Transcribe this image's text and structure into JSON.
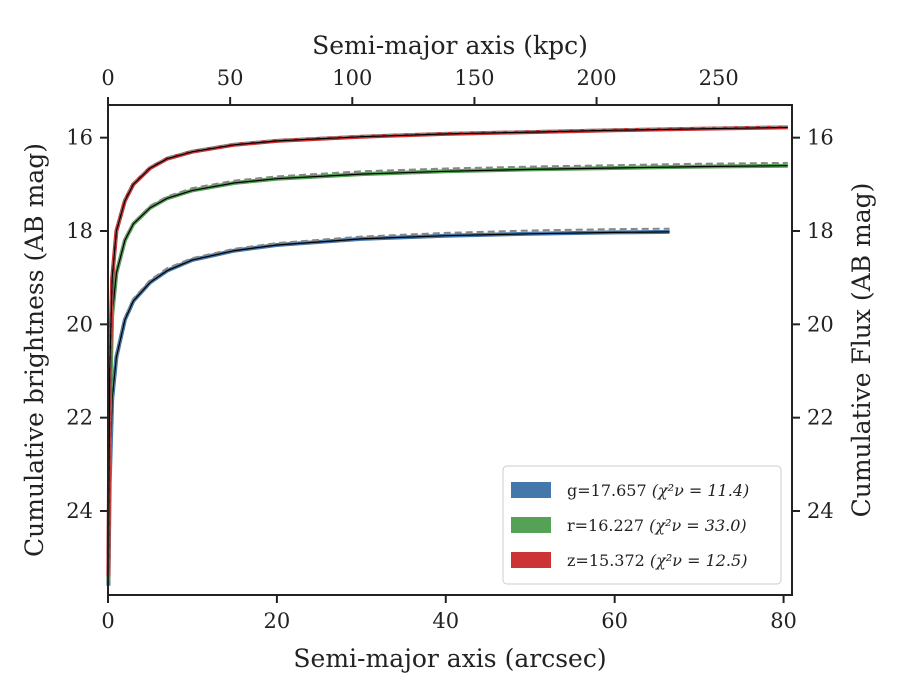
{
  "chart_data": {
    "type": "line",
    "xlabel_bottom": "Semi-major axis (arcsec)",
    "xlabel_top": "Semi-major axis (kpc)",
    "ylabel_left": "Cumulative brightness (AB mag)",
    "ylabel_right": "Cumulative Flux (AB mag)",
    "xlim": [
      0,
      81
    ],
    "ylim": [
      25.8,
      15.3
    ],
    "y_inverted": true,
    "x_ticks": [
      "0",
      "20",
      "40",
      "60",
      "80"
    ],
    "x_top_ticks": [
      "0",
      "50",
      "100",
      "150",
      "200",
      "250"
    ],
    "x_top_lim_kpc": [
      0,
      280
    ],
    "y_ticks": [
      "16",
      "18",
      "20",
      "22",
      "24"
    ],
    "legend_position": "lower-right",
    "series": [
      {
        "name": "g=17.657",
        "chi_label": "(χ²ν = 11.4)",
        "color": "#4477aa",
        "x": [
          0.05,
          0.2,
          0.5,
          1,
          2,
          3,
          5,
          7,
          10,
          15,
          20,
          30,
          40,
          50,
          60,
          66.5
        ],
        "y": [
          25.6,
          23.4,
          21.6,
          20.7,
          19.9,
          19.5,
          19.1,
          18.85,
          18.62,
          18.42,
          18.3,
          18.17,
          18.1,
          18.06,
          18.03,
          18.02
        ],
        "model_x": [
          0.05,
          0.2,
          0.5,
          1,
          2,
          3,
          5,
          7,
          10,
          15,
          20,
          30,
          40,
          50,
          60,
          66.5
        ],
        "model_y": [
          25.6,
          23.4,
          21.6,
          20.7,
          19.87,
          19.45,
          19.05,
          18.8,
          18.58,
          18.38,
          18.26,
          18.12,
          18.04,
          17.99,
          17.96,
          17.95
        ]
      },
      {
        "name": "r=16.227",
        "chi_label": "(χ²ν = 33.0)",
        "color": "#55a156",
        "x": [
          0.05,
          0.2,
          0.5,
          1,
          2,
          3,
          5,
          7,
          10,
          15,
          20,
          30,
          40,
          50,
          60,
          70,
          80.5
        ],
        "y": [
          25.5,
          22.0,
          19.8,
          18.9,
          18.2,
          17.85,
          17.5,
          17.3,
          17.13,
          16.97,
          16.88,
          16.78,
          16.72,
          16.68,
          16.65,
          16.62,
          16.6
        ],
        "model_x": [
          0.05,
          0.2,
          0.5,
          1,
          2,
          3,
          5,
          7,
          10,
          15,
          20,
          30,
          40,
          50,
          60,
          70,
          80.5
        ],
        "model_y": [
          25.5,
          22.0,
          19.8,
          18.9,
          18.18,
          17.82,
          17.46,
          17.26,
          17.08,
          16.92,
          16.83,
          16.72,
          16.66,
          16.62,
          16.59,
          16.56,
          16.54
        ]
      },
      {
        "name": "z=15.372",
        "chi_label": "(χ²ν = 12.5)",
        "color": "#cc3333",
        "x": [
          0.05,
          0.2,
          0.5,
          1,
          2,
          3,
          5,
          7,
          10,
          15,
          20,
          30,
          40,
          50,
          60,
          70,
          80.5
        ],
        "y": [
          25.4,
          21.0,
          19.0,
          18.0,
          17.35,
          17.0,
          16.65,
          16.45,
          16.3,
          16.15,
          16.07,
          15.98,
          15.92,
          15.88,
          15.84,
          15.81,
          15.78
        ],
        "model_x": [
          0.05,
          0.2,
          0.5,
          1,
          2,
          3,
          5,
          7,
          10,
          15,
          20,
          30,
          40,
          50,
          60,
          70,
          80.5
        ],
        "model_y": [
          25.4,
          21.0,
          19.0,
          18.0,
          17.33,
          16.98,
          16.63,
          16.43,
          16.28,
          16.13,
          16.05,
          15.96,
          15.9,
          15.86,
          15.82,
          15.79,
          15.76
        ]
      }
    ],
    "colors": {
      "axis": "#222222",
      "model_line": "#000000",
      "model_dash": "#888888"
    }
  }
}
